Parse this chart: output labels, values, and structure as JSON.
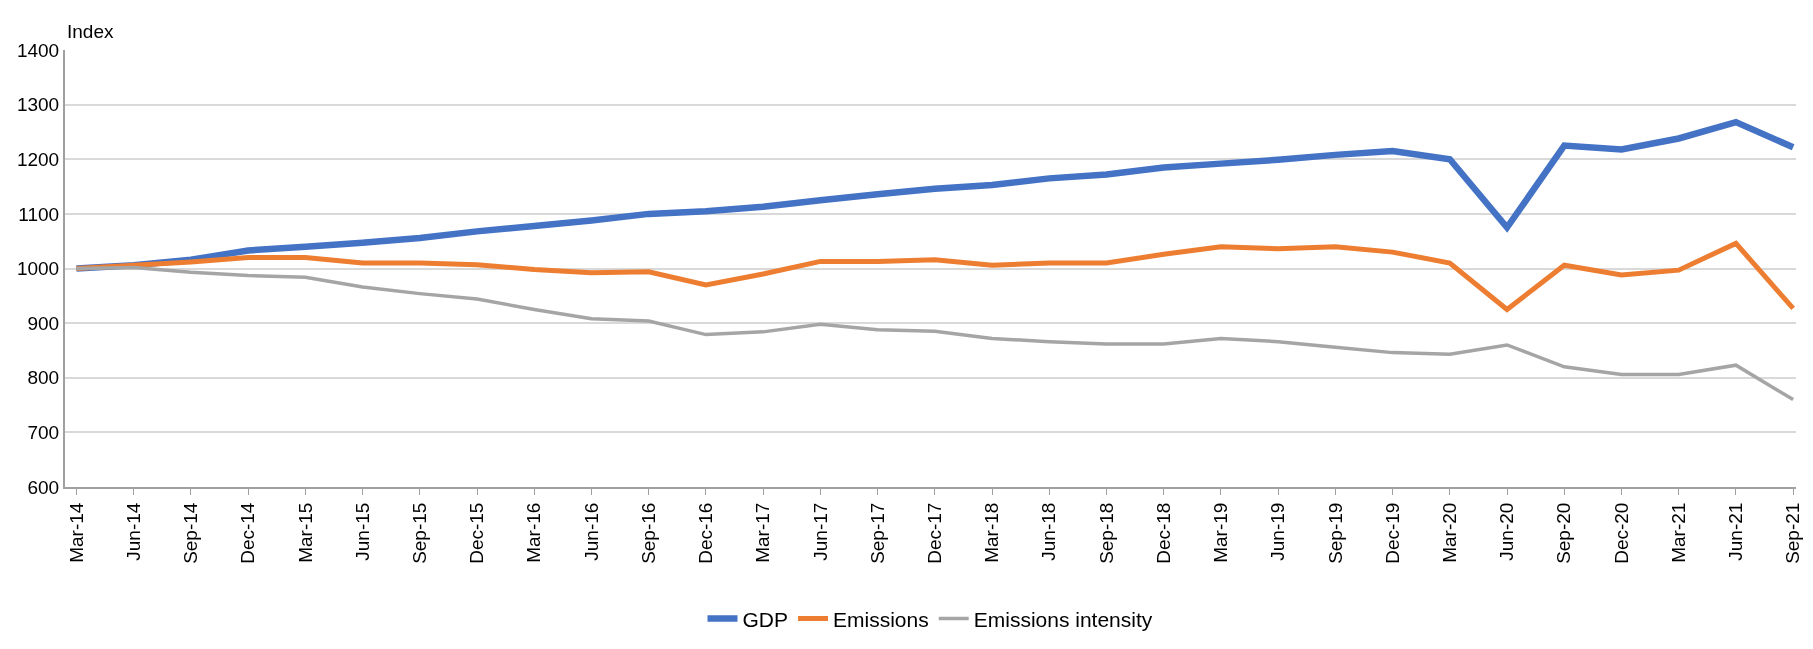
{
  "chart_data": {
    "type": "line",
    "ylabel": "Index",
    "categories": [
      "Mar-14",
      "Jun-14",
      "Sep-14",
      "Dec-14",
      "Mar-15",
      "Jun-15",
      "Sep-15",
      "Dec-15",
      "Mar-16",
      "Jun-16",
      "Sep-16",
      "Dec-16",
      "Mar-17",
      "Jun-17",
      "Sep-17",
      "Dec-17",
      "Mar-18",
      "Jun-18",
      "Sep-18",
      "Dec-18",
      "Mar-19",
      "Jun-19",
      "Sep-19",
      "Dec-19",
      "Mar-20",
      "Jun-20",
      "Sep-20",
      "Dec-20",
      "Mar-21",
      "Jun-21",
      "Sep-21"
    ],
    "series": [
      {
        "name": "GDP",
        "color": "#4472c4",
        "values": [
          1000,
          1006,
          1016,
          1033,
          1040,
          1047,
          1056,
          1068,
          1078,
          1088,
          1100,
          1105,
          1113,
          1125,
          1136,
          1146,
          1153,
          1165,
          1172,
          1185,
          1192,
          1199,
          1208,
          1215,
          1200,
          1075,
          1225,
          1218,
          1238,
          1268,
          1222
        ]
      },
      {
        "name": "Emissions",
        "color": "#ed7d31",
        "values": [
          1000,
          1006,
          1012,
          1020,
          1020,
          1010,
          1010,
          1007,
          998,
          992,
          994,
          970,
          990,
          1013,
          1013,
          1016,
          1006,
          1010,
          1010,
          1026,
          1040,
          1036,
          1040,
          1030,
          1010,
          925,
          1006,
          988,
          997,
          1046,
          927
        ]
      },
      {
        "name": "Emissions intensity",
        "color": "#a5a5a5",
        "values": [
          1000,
          1002,
          993,
          987,
          984,
          966,
          954,
          944,
          925,
          908,
          904,
          879,
          884,
          898,
          888,
          885,
          872,
          866,
          862,
          862,
          872,
          866,
          856,
          846,
          843,
          860,
          820,
          806,
          806,
          823,
          760
        ]
      }
    ],
    "ylim": [
      600,
      1400
    ],
    "yticks": [
      600,
      700,
      800,
      900,
      1000,
      1100,
      1200,
      1300,
      1400
    ],
    "grid": "y",
    "legend": "bottom",
    "marker": "none",
    "line_style": "solid"
  }
}
